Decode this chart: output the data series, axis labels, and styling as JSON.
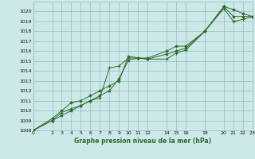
{
  "xlabel": "Graphe pression niveau de la mer (hPa)",
  "background_color": "#cde8e8",
  "grid_color": "#99bbbb",
  "line_color": "#2d6b2d",
  "ylim": [
    1008,
    1021
  ],
  "xlim": [
    0,
    23
  ],
  "yticks": [
    1008,
    1009,
    1010,
    1011,
    1012,
    1013,
    1014,
    1015,
    1016,
    1017,
    1018,
    1019,
    1020
  ],
  "xticks": [
    0,
    2,
    3,
    4,
    5,
    6,
    7,
    8,
    9,
    10,
    11,
    12,
    14,
    15,
    16,
    18,
    20,
    21,
    22,
    23
  ],
  "line1_x": [
    0,
    2,
    3,
    4,
    5,
    6,
    7,
    8,
    9,
    10,
    11,
    12,
    14,
    15,
    16,
    18,
    20,
    21,
    22,
    23
  ],
  "line1_y": [
    1008.0,
    1009.0,
    1009.8,
    1010.2,
    1010.5,
    1011.0,
    1011.3,
    1014.3,
    1014.5,
    1015.3,
    1015.3,
    1015.2,
    1015.2,
    1015.8,
    1016.1,
    1018.0,
    1020.3,
    1019.0,
    1019.2,
    1019.5
  ],
  "line2_x": [
    0,
    2,
    3,
    4,
    5,
    6,
    7,
    8,
    9,
    10,
    11,
    12,
    14,
    15,
    16,
    18,
    20,
    21,
    22,
    23
  ],
  "line2_y": [
    1008.0,
    1009.2,
    1010.0,
    1010.8,
    1011.0,
    1011.5,
    1012.0,
    1012.5,
    1013.0,
    1015.5,
    1015.3,
    1015.3,
    1016.0,
    1016.5,
    1016.5,
    1018.0,
    1020.5,
    1020.2,
    1019.8,
    1019.5
  ],
  "line3_x": [
    0,
    2,
    3,
    4,
    5,
    6,
    7,
    8,
    9,
    10,
    11,
    12,
    14,
    15,
    16,
    18,
    20,
    21,
    22,
    23
  ],
  "line3_y": [
    1008.0,
    1009.0,
    1009.5,
    1010.0,
    1010.5,
    1011.0,
    1011.5,
    1012.0,
    1013.2,
    1015.1,
    1015.3,
    1015.2,
    1015.7,
    1016.0,
    1016.3,
    1018.0,
    1020.5,
    1019.5,
    1019.5,
    1019.5
  ]
}
